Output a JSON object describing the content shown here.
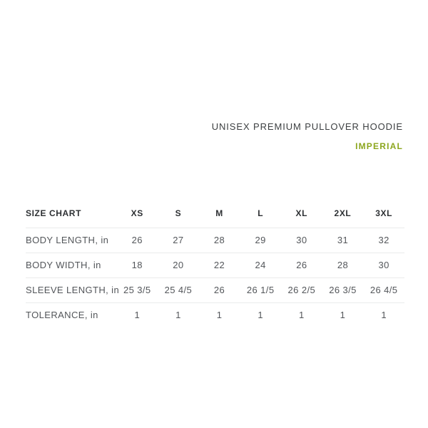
{
  "header": {
    "title": "UNISEX PREMIUM PULLOVER HOODIE",
    "unit_label": "IMPERIAL",
    "accent_color": "#8ca61e",
    "title_color": "#3d4042"
  },
  "table": {
    "columns": [
      "SIZE CHART",
      "XS",
      "S",
      "M",
      "L",
      "XL",
      "2XL",
      "3XL"
    ],
    "rows": [
      {
        "label": "BODY LENGTH, in",
        "values": [
          "26",
          "27",
          "28",
          "29",
          "30",
          "31",
          "32"
        ]
      },
      {
        "label": "BODY WIDTH, in",
        "values": [
          "18",
          "20",
          "22",
          "24",
          "26",
          "28",
          "30"
        ]
      },
      {
        "label": "SLEEVE LENGTH, in",
        "values": [
          "25 3/5",
          "25 4/5",
          "26",
          "26 1/5",
          "26 2/5",
          "26 3/5",
          "26 4/5"
        ]
      },
      {
        "label": "TOLERANCE, in",
        "values": [
          "1",
          "1",
          "1",
          "1",
          "1",
          "1",
          "1"
        ]
      }
    ],
    "border_color": "#eaebeb",
    "text_color": "#53565a"
  }
}
